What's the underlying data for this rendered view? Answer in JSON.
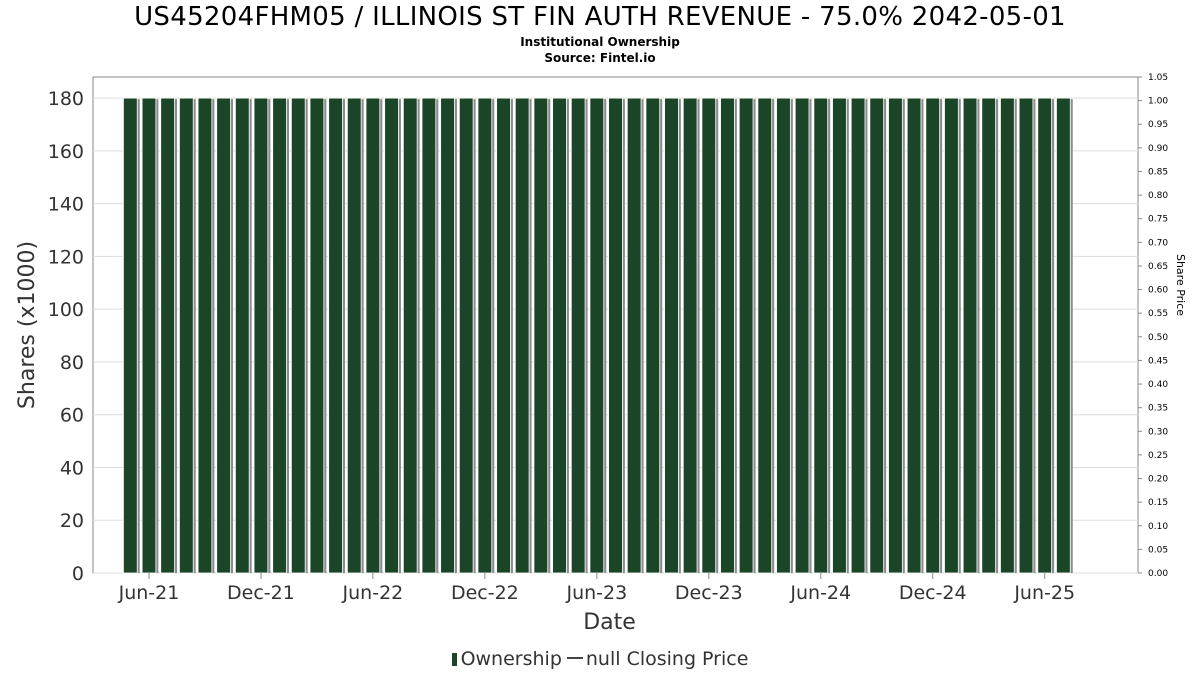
{
  "chart_title": "US45204FHM05 / ILLINOIS ST FIN AUTH REVENUE - 75.0% 2042-05-01",
  "subtitle_1": "Institutional Ownership",
  "subtitle_2": "Source: Fintel.io",
  "legend": {
    "ownership_label": "Ownership",
    "price_label": "null Closing Price"
  },
  "colors": {
    "bar": "#1a4527",
    "bar_shadow": "#8c8c8c",
    "grid": "#dddddd",
    "axis": "#888888"
  },
  "chart_data": {
    "type": "bar",
    "xlabel": "Date",
    "ylabel": "Shares (x1000)",
    "y2label": "Share Price",
    "ylim": [
      0,
      188
    ],
    "y2lim": [
      0,
      1.05
    ],
    "yticks": [
      0,
      20,
      40,
      60,
      80,
      100,
      120,
      140,
      160,
      180
    ],
    "y2ticks": [
      "0.00",
      "0.05",
      "0.10",
      "0.15",
      "0.20",
      "0.25",
      "0.30",
      "0.35",
      "0.40",
      "0.45",
      "0.50",
      "0.55",
      "0.60",
      "0.65",
      "0.70",
      "0.75",
      "0.80",
      "0.85",
      "0.90",
      "0.95",
      "1.00",
      "1.05"
    ],
    "xticks": [
      "Jun-21",
      "Dec-21",
      "Jun-22",
      "Dec-22",
      "Jun-23",
      "Dec-23",
      "Jun-24",
      "Dec-24",
      "Jun-25"
    ],
    "xrange": [
      "2021-03",
      "2025-11"
    ],
    "series": [
      {
        "name": "Ownership",
        "start": "2021-05",
        "values": [
          180,
          180,
          180,
          180,
          180,
          180,
          180,
          180,
          180,
          180,
          180,
          180,
          180,
          180,
          180,
          180,
          180,
          180,
          180,
          180,
          180,
          180,
          180,
          180,
          180,
          180,
          180,
          180,
          180,
          180,
          180,
          180,
          180,
          180,
          180,
          180,
          180,
          180,
          180,
          180,
          180,
          180,
          180,
          180,
          180,
          180,
          180,
          180,
          180,
          180,
          180
        ]
      }
    ],
    "grid": true
  }
}
